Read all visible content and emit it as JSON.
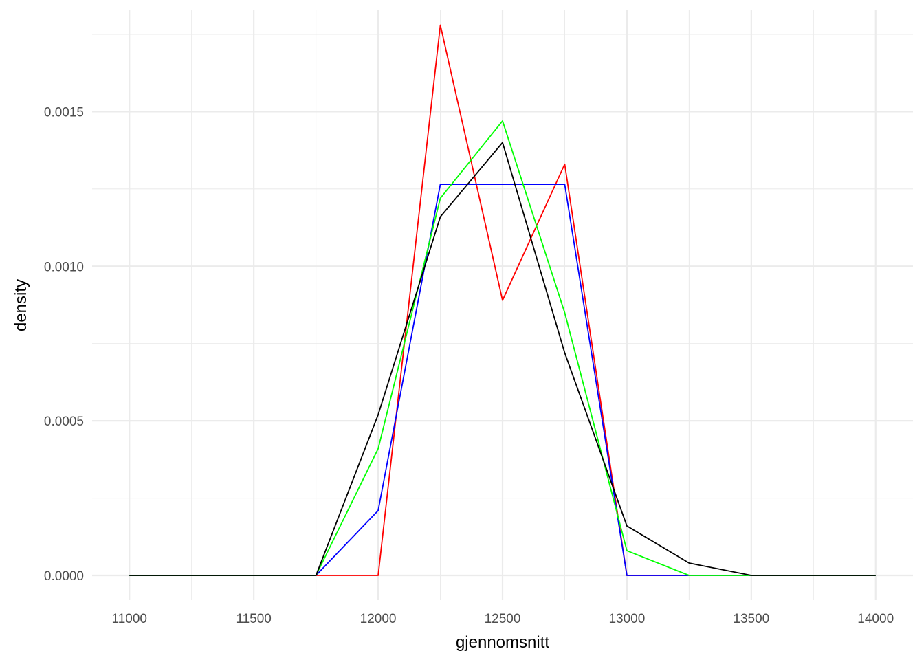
{
  "chart_data": {
    "type": "line",
    "title": "",
    "xlabel": "gjennomsnitt",
    "ylabel": "density",
    "xlim": [
      10850,
      14150
    ],
    "ylim": [
      -8e-05,
      0.00183
    ],
    "x_ticks": [
      11000,
      11500,
      12000,
      12500,
      13000,
      13500,
      14000
    ],
    "x_tick_labels": [
      "11000",
      "11500",
      "12000",
      "12500",
      "13000",
      "13500",
      "14000"
    ],
    "y_ticks": [
      0,
      0.0005,
      0.001,
      0.0015
    ],
    "y_tick_labels": [
      "0.0000",
      "0.0005",
      "0.0010",
      "0.0015"
    ],
    "y_minor_ticks": [
      0.00025,
      0.00075,
      0.00125,
      0.00175
    ],
    "x_minor_ticks": [
      11250,
      11750,
      12250,
      12750,
      13250,
      13750
    ],
    "grid": true,
    "legend": "none",
    "series": [
      {
        "color": "#ff0000",
        "x": [
          11000,
          11250,
          11500,
          11750,
          12000,
          12250,
          12500,
          12750,
          13000,
          13250,
          13500,
          13750,
          14000
        ],
        "y": [
          0,
          0,
          0,
          0,
          0,
          0.00178,
          0.00089,
          0.00133,
          0,
          0,
          0,
          0,
          0
        ]
      },
      {
        "color": "#0000ff",
        "x": [
          11000,
          11250,
          11500,
          11750,
          12000,
          12250,
          12500,
          12750,
          13000,
          13250,
          13500,
          13750,
          14000
        ],
        "y": [
          0,
          0,
          0,
          0,
          0.00021,
          0.001265,
          0.001265,
          0.001265,
          0,
          0,
          0,
          0,
          0
        ]
      },
      {
        "color": "#00ff00",
        "x": [
          11000,
          11250,
          11500,
          11750,
          12000,
          12250,
          12500,
          12750,
          13000,
          13250,
          13500,
          13750,
          14000
        ],
        "y": [
          0,
          0,
          0,
          0,
          0.00041,
          0.00122,
          0.00147,
          0.00085,
          8e-05,
          0,
          0,
          0,
          0
        ]
      },
      {
        "color": "#000000",
        "x": [
          11000,
          11250,
          11500,
          11750,
          12000,
          12250,
          12500,
          12750,
          13000,
          13250,
          13500,
          13750,
          14000
        ],
        "y": [
          0,
          0,
          0,
          0,
          0.00052,
          0.00116,
          0.0014,
          0.00072,
          0.00016,
          4e-05,
          0,
          0,
          0
        ]
      }
    ]
  }
}
